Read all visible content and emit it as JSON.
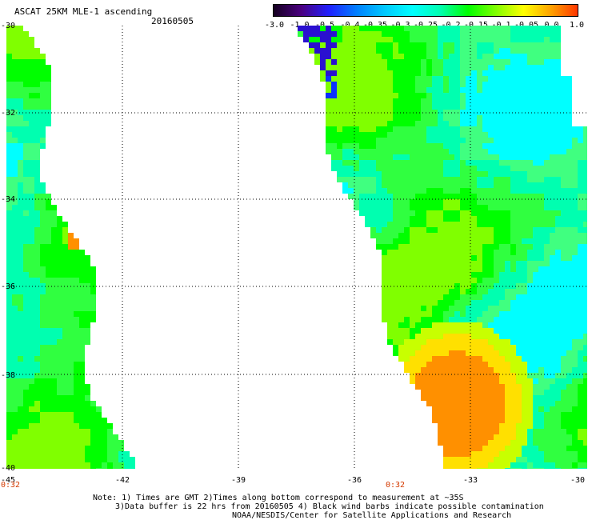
{
  "header": {
    "title": "ASCAT 25KM MLE-1 ascending",
    "date": "20160505"
  },
  "colorbar": {
    "labels": [
      "-3.0",
      "-1.0",
      "-0.5",
      "-0.4",
      "-0.35",
      "-0.3",
      "-0.25",
      "-0.2",
      "-0.15",
      "-0.1",
      "-0.05",
      "0.0",
      "1.0"
    ],
    "colors": [
      "#150020",
      "#4a0080",
      "#2020ff",
      "#0080ff",
      "#00c8ff",
      "#00ffff",
      "#00ffb0",
      "#00ff00",
      "#80ff00",
      "#ffff00",
      "#ffa000",
      "#ff3000"
    ]
  },
  "axes": {
    "y_labels": [
      "-30",
      "-32",
      "-34",
      "-36",
      "-38",
      "-40"
    ],
    "x_labels": [
      "-45",
      "-42",
      "-39",
      "-36",
      "-33",
      "-30"
    ],
    "lat_range": [
      -40,
      -30
    ],
    "lon_range": [
      -45,
      -30
    ]
  },
  "times": {
    "left": "0:32",
    "right": "0:32"
  },
  "notes": {
    "line1": "Note: 1) Times are GMT 2)Times along bottom correspond to measurement at ~35S",
    "line2": "3)Data buffer is 22 hrs from 20160505 4) Black wind barbs indicate possible contamination",
    "line3": "NOAA/NESDIS/Center for Satellite Applications and Research"
  }
}
